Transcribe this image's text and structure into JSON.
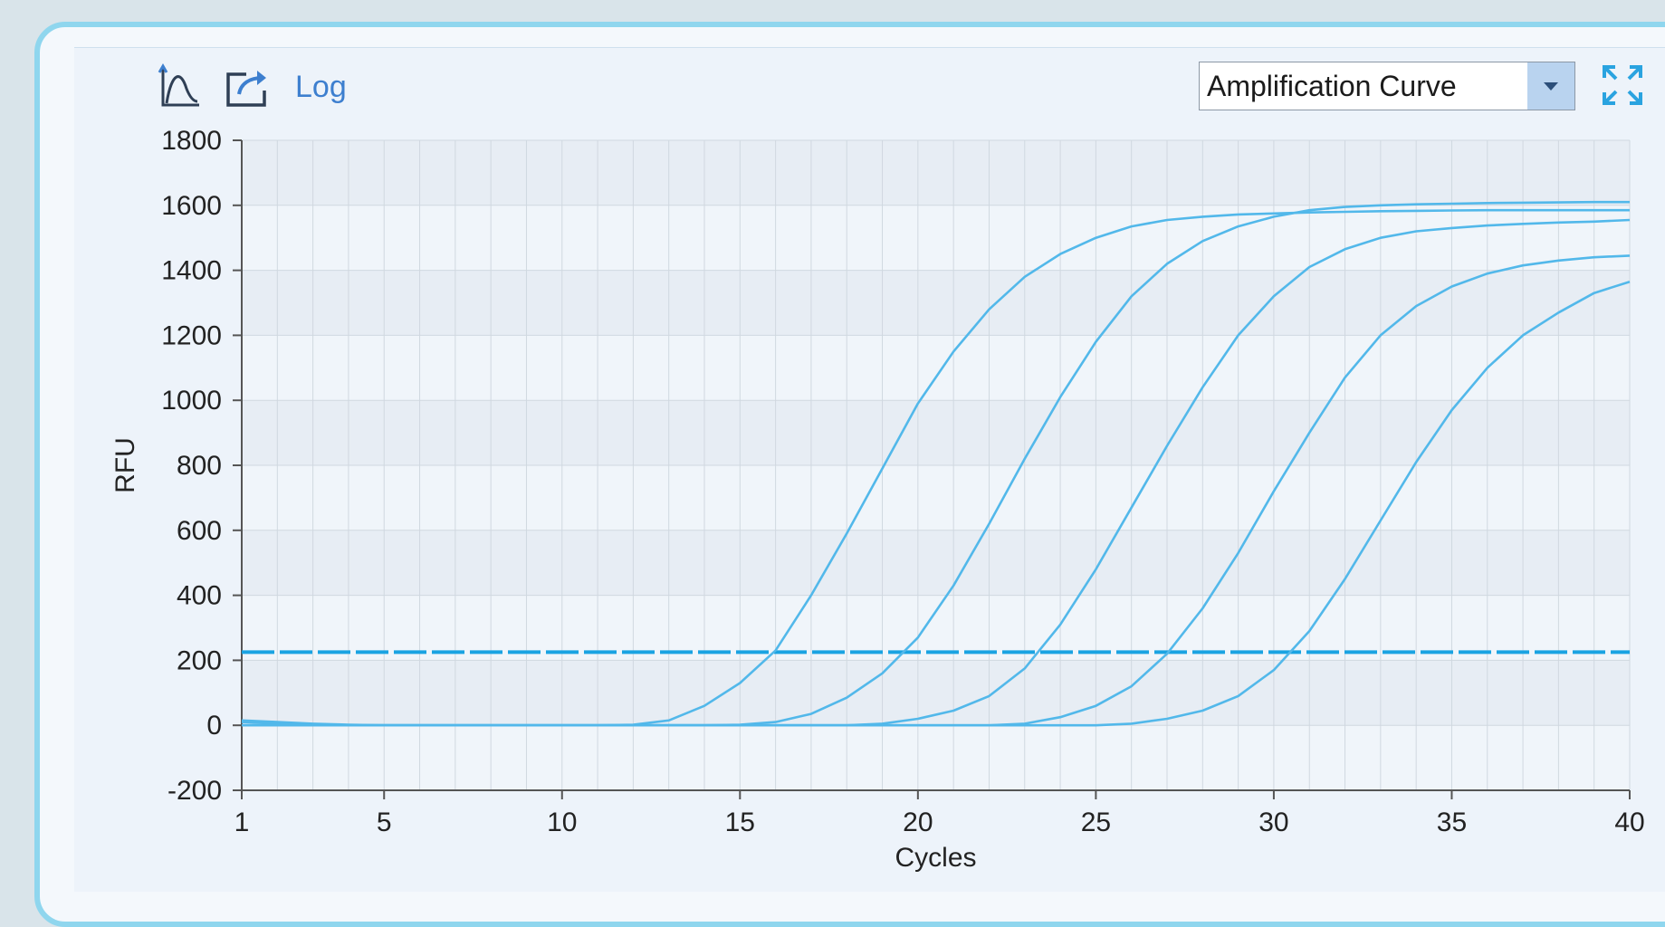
{
  "toolbar": {
    "chart_icon": "chart-curve-icon",
    "export_icon": "export-icon",
    "log_label": "Log",
    "chart_type_selected": "Amplification Curve",
    "expand_icon": "fullscreen-expand-icon"
  },
  "colors": {
    "curve": "#52b8ea",
    "threshold": "#1aa3e2",
    "band_dark": "#e7edf4",
    "band_light": "#f0f5fa",
    "grid": "#d0d8e0",
    "axis": "#555555"
  },
  "chart_data": {
    "type": "line",
    "xlabel": "Cycles",
    "ylabel": "RFU",
    "xlim": [
      1,
      40
    ],
    "ylim": [
      -200,
      1800
    ],
    "x_ticks": [
      1,
      5,
      10,
      15,
      20,
      25,
      30,
      35,
      40
    ],
    "y_ticks": [
      -200,
      0,
      200,
      400,
      600,
      800,
      1000,
      1200,
      1400,
      1600,
      1800
    ],
    "grid": true,
    "threshold": 225,
    "x": [
      1,
      2,
      3,
      4,
      5,
      6,
      7,
      8,
      9,
      10,
      11,
      12,
      13,
      14,
      15,
      16,
      17,
      18,
      19,
      20,
      21,
      22,
      23,
      24,
      25,
      26,
      27,
      28,
      29,
      30,
      31,
      32,
      33,
      34,
      35,
      36,
      37,
      38,
      39,
      40
    ],
    "series": [
      {
        "values": [
          10,
          5,
          2,
          0,
          0,
          0,
          0,
          0,
          0,
          0,
          0,
          2,
          15,
          60,
          130,
          230,
          400,
          590,
          790,
          990,
          1150,
          1280,
          1380,
          1450,
          1500,
          1535,
          1555,
          1565,
          1572,
          1575,
          1578,
          1580,
          1582,
          1583,
          1584,
          1585,
          1585,
          1585,
          1585,
          1585
        ]
      },
      {
        "values": [
          15,
          10,
          5,
          2,
          0,
          0,
          0,
          0,
          0,
          0,
          0,
          0,
          0,
          0,
          2,
          10,
          35,
          85,
          160,
          270,
          430,
          620,
          820,
          1010,
          1180,
          1320,
          1420,
          1490,
          1535,
          1565,
          1585,
          1595,
          1600,
          1603,
          1605,
          1607,
          1608,
          1609,
          1610,
          1610
        ]
      },
      {
        "values": [
          0,
          0,
          0,
          0,
          0,
          0,
          0,
          0,
          0,
          0,
          0,
          0,
          0,
          0,
          0,
          0,
          0,
          0,
          5,
          20,
          45,
          90,
          175,
          310,
          480,
          670,
          860,
          1040,
          1200,
          1320,
          1410,
          1465,
          1500,
          1520,
          1530,
          1538,
          1543,
          1547,
          1550,
          1555
        ]
      },
      {
        "values": [
          0,
          0,
          0,
          0,
          0,
          0,
          0,
          0,
          0,
          0,
          0,
          0,
          0,
          0,
          0,
          0,
          0,
          0,
          0,
          0,
          0,
          0,
          5,
          25,
          60,
          120,
          220,
          360,
          530,
          720,
          900,
          1070,
          1200,
          1290,
          1350,
          1390,
          1415,
          1430,
          1440,
          1445
        ]
      },
      {
        "values": [
          0,
          0,
          0,
          0,
          0,
          0,
          0,
          0,
          0,
          0,
          0,
          0,
          0,
          0,
          0,
          0,
          0,
          0,
          0,
          0,
          0,
          0,
          0,
          0,
          0,
          5,
          20,
          45,
          90,
          170,
          290,
          450,
          630,
          810,
          970,
          1100,
          1200,
          1270,
          1330,
          1365
        ]
      }
    ]
  }
}
